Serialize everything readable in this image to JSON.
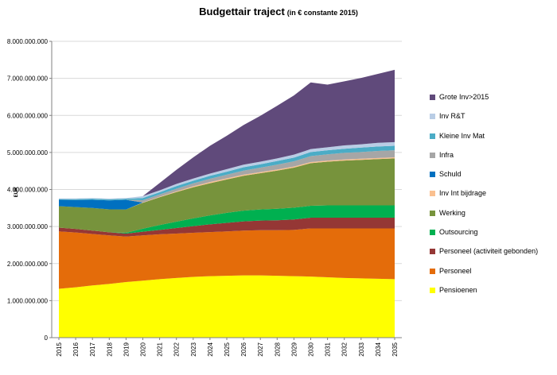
{
  "chart_data": {
    "type": "area",
    "stacked": true,
    "title": "Budgettair traject",
    "subtitle": "(in € constante 2015)",
    "ylabel": "EUR",
    "xlabel": "",
    "ylim": [
      0,
      8000000000
    ],
    "yticks": [
      0,
      1000000000,
      2000000000,
      3000000000,
      4000000000,
      5000000000,
      6000000000,
      7000000000,
      8000000000
    ],
    "ytick_labels": [
      "0",
      "1.000.000.000",
      "2.000.000.000",
      "3.000.000.000",
      "4.000.000.000",
      "5.000.000.000",
      "6.000.000.000",
      "7.000.000.000",
      "8.000.000.000"
    ],
    "categories": [
      "2015",
      "2016",
      "2017",
      "2018",
      "2019",
      "2020",
      "2021",
      "2022",
      "2023",
      "2024",
      "2025",
      "2026",
      "2027",
      "2028",
      "2029",
      "2030",
      "2031",
      "2032",
      "2033",
      "2034",
      "2035"
    ],
    "grid": true,
    "legend_position": "right",
    "series": [
      {
        "name": "Pensioenen",
        "color": "#FFFF00",
        "values": [
          1320000000,
          1360000000,
          1410000000,
          1450000000,
          1500000000,
          1540000000,
          1580000000,
          1610000000,
          1640000000,
          1660000000,
          1670000000,
          1680000000,
          1680000000,
          1670000000,
          1660000000,
          1650000000,
          1630000000,
          1610000000,
          1600000000,
          1590000000,
          1580000000
        ]
      },
      {
        "name": "Personeel",
        "color": "#E46C0A",
        "values": [
          1550000000,
          1480000000,
          1390000000,
          1310000000,
          1230000000,
          1220000000,
          1210000000,
          1200000000,
          1190000000,
          1190000000,
          1200000000,
          1210000000,
          1220000000,
          1230000000,
          1250000000,
          1300000000,
          1320000000,
          1340000000,
          1350000000,
          1360000000,
          1370000000
        ]
      },
      {
        "name": "Personeel (activiteit gebonden)",
        "color": "#953735",
        "values": [
          100000000,
          95000000,
          90000000,
          85000000,
          80000000,
          100000000,
          120000000,
          150000000,
          180000000,
          210000000,
          230000000,
          250000000,
          260000000,
          270000000,
          280000000,
          290000000,
          290000000,
          290000000,
          290000000,
          290000000,
          290000000
        ]
      },
      {
        "name": "Outsourcing",
        "color": "#00B050",
        "values": [
          0,
          0,
          0,
          0,
          20000000,
          80000000,
          130000000,
          170000000,
          210000000,
          240000000,
          270000000,
          290000000,
          300000000,
          310000000,
          320000000,
          320000000,
          330000000,
          330000000,
          330000000,
          330000000,
          330000000
        ]
      },
      {
        "name": "Werking",
        "color": "#77933C",
        "values": [
          580000000,
          590000000,
          610000000,
          620000000,
          630000000,
          700000000,
          750000000,
          800000000,
          840000000,
          870000000,
          900000000,
          940000000,
          980000000,
          1030000000,
          1080000000,
          1150000000,
          1180000000,
          1210000000,
          1230000000,
          1250000000,
          1270000000
        ]
      },
      {
        "name": "Inv Int bijdrage",
        "color": "#FAC090",
        "values": [
          0,
          0,
          0,
          0,
          0,
          10000000,
          15000000,
          20000000,
          25000000,
          30000000,
          30000000,
          30000000,
          30000000,
          30000000,
          30000000,
          30000000,
          30000000,
          30000000,
          30000000,
          30000000,
          30000000
        ]
      },
      {
        "name": "Schuld",
        "color": "#0070C0",
        "values": [
          170000000,
          190000000,
          220000000,
          240000000,
          260000000,
          0,
          0,
          0,
          0,
          0,
          0,
          0,
          0,
          0,
          0,
          0,
          0,
          0,
          0,
          0,
          0
        ]
      },
      {
        "name": "Infra",
        "color": "#A6A6A6",
        "values": [
          0,
          0,
          0,
          0,
          0,
          60000000,
          60000000,
          70000000,
          80000000,
          90000000,
          100000000,
          110000000,
          120000000,
          130000000,
          140000000,
          160000000,
          170000000,
          180000000,
          180000000,
          190000000,
          190000000
        ]
      },
      {
        "name": "Kleine Inv Mat",
        "color": "#4BACC6",
        "values": [
          20000000,
          25000000,
          30000000,
          30000000,
          30000000,
          60000000,
          60000000,
          70000000,
          70000000,
          80000000,
          80000000,
          90000000,
          90000000,
          100000000,
          100000000,
          110000000,
          110000000,
          110000000,
          120000000,
          120000000,
          120000000
        ]
      },
      {
        "name": "Inv R&T",
        "color": "#B9CDE5",
        "values": [
          20000000,
          20000000,
          20000000,
          20000000,
          20000000,
          50000000,
          50000000,
          60000000,
          60000000,
          60000000,
          70000000,
          70000000,
          70000000,
          70000000,
          80000000,
          80000000,
          80000000,
          90000000,
          90000000,
          100000000,
          100000000
        ]
      },
      {
        "name": "Grote Inv>2015",
        "color": "#604A7B",
        "values": [
          0,
          0,
          0,
          0,
          0,
          0,
          200000000,
          380000000,
          570000000,
          750000000,
          900000000,
          1070000000,
          1240000000,
          1420000000,
          1600000000,
          1800000000,
          1690000000,
          1730000000,
          1790000000,
          1860000000,
          1950000000
        ]
      }
    ]
  }
}
